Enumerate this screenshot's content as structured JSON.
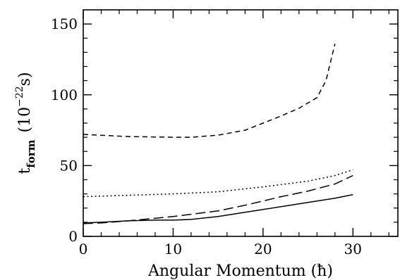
{
  "chart_data": {
    "type": "line",
    "title": "",
    "xlabel": "Angular Momentum (ħ)",
    "ylabel": {
      "main": "t",
      "subscript": "form",
      "unit_open": "(10",
      "unit_exponent": "−22",
      "unit_close": "s)"
    },
    "xlim": [
      0,
      35
    ],
    "ylim": [
      0,
      160
    ],
    "x_ticks": [
      0,
      10,
      20,
      30
    ],
    "x_minor_ticks": [
      2,
      4,
      6,
      8,
      12,
      14,
      16,
      18,
      22,
      24,
      26,
      28,
      32,
      34
    ],
    "y_ticks": [
      0,
      50,
      100,
      150
    ],
    "y_minor_ticks": [
      10,
      20,
      30,
      40,
      60,
      70,
      80,
      90,
      110,
      120,
      130,
      140
    ],
    "grid": false,
    "legend": "none",
    "series": [
      {
        "style": "short-dash",
        "x": [
          0,
          5,
          10,
          12,
          15,
          18,
          20,
          22,
          24,
          26,
          27,
          28
        ],
        "y": [
          72,
          70.5,
          70,
          70,
          71.5,
          75,
          80,
          85,
          90.5,
          98,
          110,
          136
        ]
      },
      {
        "style": "dotted",
        "x": [
          0,
          5,
          10,
          15,
          20,
          25,
          28,
          30
        ],
        "y": [
          28,
          29,
          30,
          31.5,
          35,
          39,
          43,
          47
        ]
      },
      {
        "style": "long-dash",
        "x": [
          0,
          2,
          5,
          10,
          15,
          18,
          20,
          22,
          25,
          28,
          30
        ],
        "y": [
          9,
          9.5,
          11,
          14,
          18,
          22,
          25,
          28,
          32,
          37,
          43
        ]
      },
      {
        "style": "solid",
        "x": [
          0,
          2,
          5,
          8,
          10,
          12,
          15,
          20,
          25,
          28,
          30
        ],
        "y": [
          9.5,
          10,
          11,
          11.5,
          11.5,
          12,
          14,
          19,
          24,
          27,
          29.5
        ]
      }
    ]
  }
}
